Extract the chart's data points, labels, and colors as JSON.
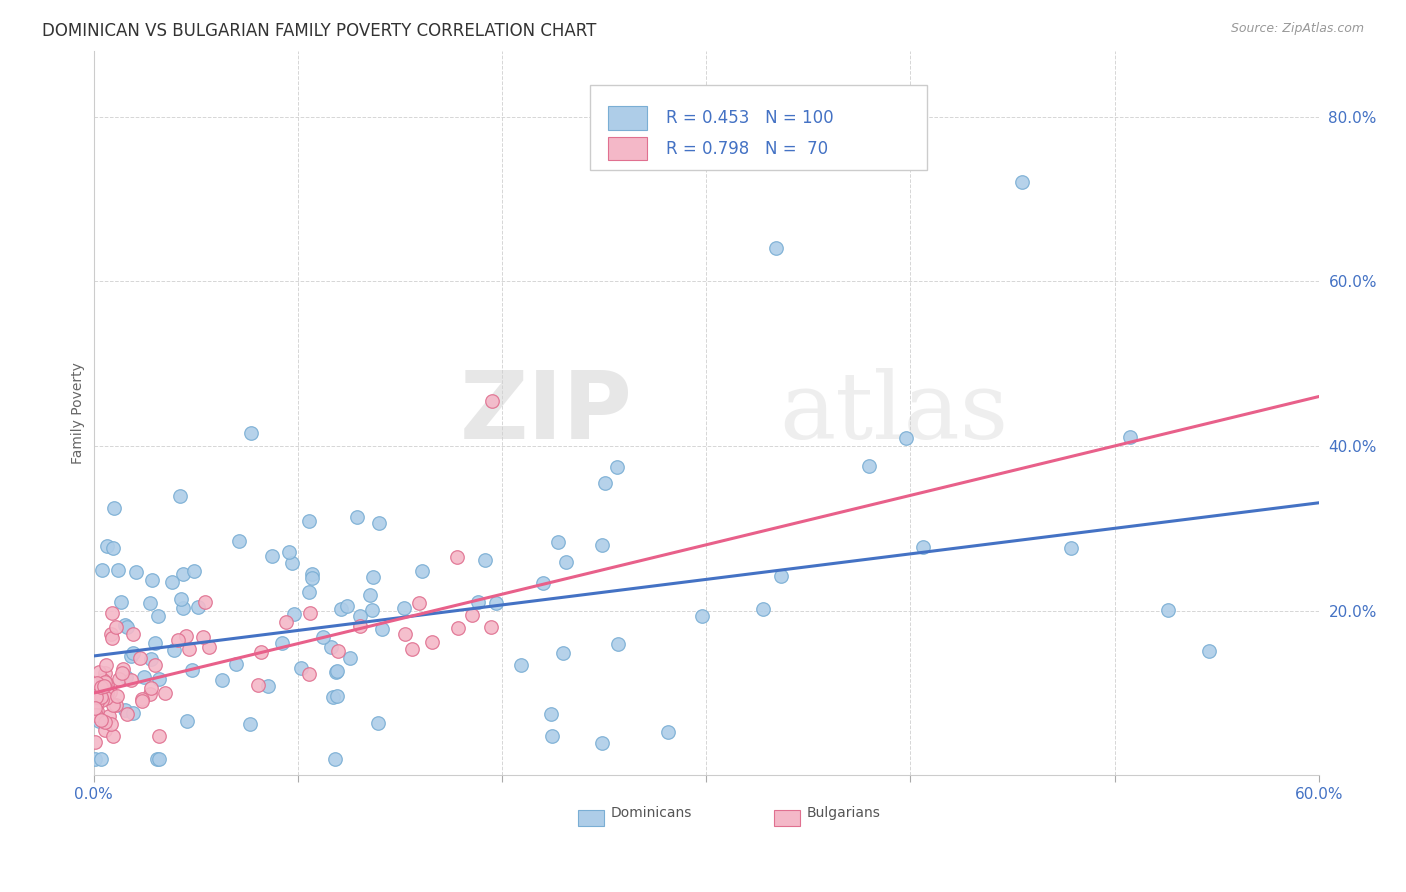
{
  "title": "DOMINICAN VS BULGARIAN FAMILY POVERTY CORRELATION CHART",
  "source": "Source: ZipAtlas.com",
  "ylabel": "Family Poverty",
  "xlim": [
    0.0,
    0.6
  ],
  "ylim": [
    0.0,
    0.88
  ],
  "dominican_color": "#AECDE8",
  "dominican_edge_color": "#7AAED4",
  "bulgarian_color": "#F4B8C8",
  "bulgarian_edge_color": "#E07090",
  "dominican_line_color": "#4472C4",
  "bulgarian_line_color": "#E8608A",
  "legend_text_color": "#4472C4",
  "tick_color": "#4472C4",
  "watermark_zip": "ZIP",
  "watermark_atlas": "atlas",
  "title_fontsize": 12,
  "source_fontsize": 9,
  "axis_label_fontsize": 10,
  "tick_fontsize": 11,
  "legend_fontsize": 12,
  "background_color": "#FFFFFF",
  "grid_color": "#CCCCCC",
  "dominican_intercept": 0.145,
  "dominican_slope": 0.31,
  "bulgarian_intercept": 0.1,
  "bulgarian_slope": 0.6,
  "legend_R_dominican": "0.453",
  "legend_N_dominican": "100",
  "legend_R_bulgarian": "0.798",
  "legend_N_bulgarian": "70"
}
